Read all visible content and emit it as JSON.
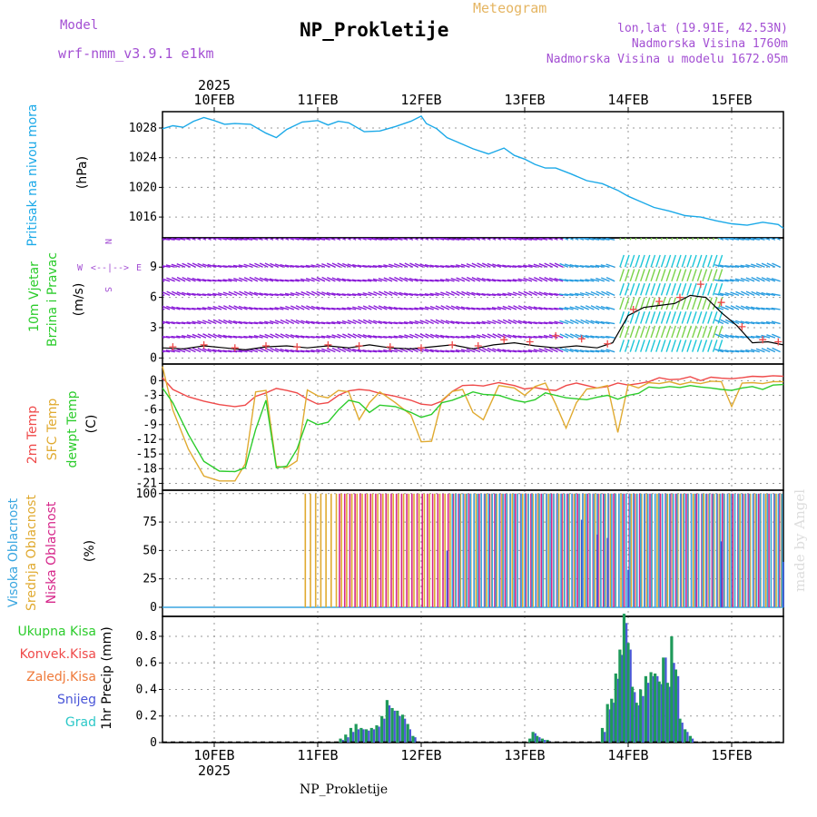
{
  "header": {
    "model_label": "Model",
    "model_name": "wrf-nmm_v3.9.1 e1km",
    "product": "Meteogram",
    "station": "NP_Prokletije",
    "lonlat": "lon,lat (19.91E, 42.53N)",
    "elevation": "Nadmorska Visina 1760m",
    "model_elevation": "Nadmorska Visina u modelu 1672.05m",
    "footer_station": "NP_Prokletije",
    "watermark": "made by Angel"
  },
  "colors": {
    "pressure": "#1ba9e8",
    "temp2m": "#ef4a4a",
    "tsfc": "#e0aa30",
    "dewpt": "#2ccc2c",
    "cloud_high": "#3aa6e0",
    "cloud_mid": "#e0aa30",
    "cloud_low": "#d6268a",
    "precip_total": "#1f9a5a",
    "precip_snow": "#4a56d8",
    "header_purple": "#a34fd3",
    "header_gold": "#e5b562",
    "wind_purple": "#8a1cd8"
  },
  "time_axis": {
    "year": "2025",
    "ticks": [
      "10FEB",
      "11FEB",
      "12FEB",
      "13FEB",
      "14FEB",
      "15FEB"
    ],
    "range_days": [
      9.5,
      15.5
    ]
  },
  "panels": {
    "pressure": {
      "ylabel": "Pritisak na nivou mora",
      "unit": "(hPa)"
    },
    "wind": {
      "ylabel1": "10m Vjetar",
      "ylabel2": "Brzina i Pravac",
      "unit": "(m/s)",
      "compass_n": "N",
      "compass_w": "W",
      "compass_e": "E",
      "compass_s": "S",
      "compass_arrows": "<--|-->"
    },
    "temperature": {
      "label_2m": "2m Temp",
      "label_sfc": "SFC Temp",
      "label_dew": "dewpt Temp",
      "unit": "(C)"
    },
    "cloud": {
      "label_high": "Visoka Oblacnost",
      "label_mid": "Srednja Oblacnost",
      "label_low": "Niska Oblacnost",
      "unit": "(%)"
    },
    "precip": {
      "label_total": "Ukupna Kisa",
      "label_conv": "Konvek.Kisa",
      "label_frz": "Zaledj.Kisa",
      "label_snow": "Snijeg",
      "label_hail": "Grad",
      "ylabel": "1hr Precip (mm)"
    }
  },
  "chart_data": [
    {
      "type": "line",
      "name": "pressure",
      "ylim": [
        1013.2,
        1030.2
      ],
      "yticks": [
        1016,
        1020,
        1024,
        1028
      ],
      "x": [
        9.5,
        9.6,
        9.7,
        9.8,
        9.9,
        10.0,
        10.1,
        10.2,
        10.35,
        10.5,
        10.6,
        10.7,
        10.85,
        11.0,
        11.1,
        11.2,
        11.3,
        11.45,
        11.6,
        11.75,
        11.9,
        12.0,
        12.05,
        12.15,
        12.25,
        12.35,
        12.5,
        12.65,
        12.8,
        12.9,
        13.0,
        13.1,
        13.2,
        13.3,
        13.45,
        13.6,
        13.75,
        13.9,
        14.0,
        14.1,
        14.25,
        14.4,
        14.55,
        14.7,
        14.85,
        15.0,
        15.15,
        15.3,
        15.45,
        15.5
      ],
      "values": [
        1027.9,
        1028.3,
        1028.1,
        1028.9,
        1029.4,
        1029.0,
        1028.5,
        1028.6,
        1028.5,
        1027.3,
        1026.7,
        1027.8,
        1028.8,
        1029.0,
        1028.4,
        1028.9,
        1028.7,
        1027.5,
        1027.6,
        1028.2,
        1028.9,
        1029.6,
        1028.6,
        1027.9,
        1026.7,
        1026.1,
        1025.2,
        1024.5,
        1025.3,
        1024.3,
        1023.8,
        1023.1,
        1022.6,
        1022.6,
        1021.8,
        1020.9,
        1020.5,
        1019.6,
        1018.8,
        1018.2,
        1017.3,
        1016.8,
        1016.2,
        1016.0,
        1015.5,
        1015.1,
        1014.9,
        1015.3,
        1015.0,
        1014.5
      ]
    },
    {
      "type": "line",
      "name": "wind",
      "ylim": [
        -0.6,
        11.9
      ],
      "yticks": [
        0,
        3,
        6,
        9
      ],
      "x": [
        9.5,
        9.7,
        9.9,
        10.1,
        10.3,
        10.5,
        10.7,
        10.9,
        11.1,
        11.3,
        11.5,
        11.7,
        11.9,
        12.1,
        12.3,
        12.5,
        12.7,
        12.9,
        13.1,
        13.3,
        13.5,
        13.7,
        13.85,
        14.0,
        14.15,
        14.3,
        14.45,
        14.6,
        14.75,
        14.9,
        15.05,
        15.2,
        15.35,
        15.5
      ],
      "values": [
        1.0,
        0.9,
        1.2,
        1.0,
        0.8,
        1.1,
        1.2,
        1.0,
        1.2,
        1.0,
        1.3,
        1.0,
        0.9,
        1.1,
        1.3,
        0.9,
        1.3,
        1.5,
        1.2,
        1.0,
        1.2,
        1.0,
        1.5,
        4.2,
        5.0,
        5.2,
        5.4,
        6.2,
        6.0,
        4.5,
        3.2,
        1.5,
        1.6,
        1.3
      ],
      "gust_x": [
        9.6,
        9.9,
        10.2,
        10.5,
        10.8,
        11.1,
        11.4,
        11.7,
        12.0,
        12.3,
        12.55,
        12.8,
        13.05,
        13.3,
        13.55,
        13.8,
        14.05,
        14.3,
        14.5,
        14.7,
        14.9,
        15.1,
        15.3,
        15.45
      ],
      "gust_values": [
        1.1,
        1.3,
        1.0,
        1.2,
        1.1,
        1.3,
        1.2,
        1.1,
        1.0,
        1.3,
        1.2,
        1.8,
        1.6,
        2.2,
        1.9,
        1.4,
        4.8,
        5.6,
        6.0,
        7.3,
        5.5,
        3.1,
        1.8,
        1.6
      ]
    },
    {
      "type": "line",
      "name": "temperature",
      "ylim": [
        -22.4,
        3.4
      ],
      "yticks": [
        -21,
        -18,
        -15,
        -12,
        -9,
        -6,
        -3,
        0
      ],
      "x": [
        9.5,
        9.6,
        9.75,
        9.9,
        10.05,
        10.2,
        10.3,
        10.4,
        10.5,
        10.6,
        10.7,
        10.8,
        10.9,
        11.0,
        11.1,
        11.2,
        11.3,
        11.4,
        11.5,
        11.6,
        11.75,
        11.9,
        12.0,
        12.1,
        12.2,
        12.3,
        12.4,
        12.5,
        12.6,
        12.75,
        12.9,
        13.0,
        13.1,
        13.2,
        13.3,
        13.4,
        13.5,
        13.6,
        13.7,
        13.8,
        13.9,
        14.0,
        14.1,
        14.2,
        14.3,
        14.4,
        14.5,
        14.6,
        14.7,
        14.8,
        14.9,
        15.0,
        15.1,
        15.2,
        15.3,
        15.4,
        15.5
      ],
      "series": [
        {
          "name": "2m Temp",
          "values": [
            0.6,
            -1.8,
            -3.3,
            -4.2,
            -4.9,
            -5.3,
            -5.0,
            -3.2,
            -2.5,
            -1.6,
            -2.0,
            -2.5,
            -3.8,
            -4.8,
            -4.5,
            -3.0,
            -2.1,
            -1.8,
            -2.0,
            -2.6,
            -3.2,
            -4.0,
            -4.8,
            -5.0,
            -4.2,
            -2.2,
            -1.0,
            -0.9,
            -1.1,
            -0.4,
            -1.0,
            -1.7,
            -1.4,
            -1.8,
            -2.0,
            -1.0,
            -0.5,
            -1.0,
            -1.5,
            -1.2,
            -0.5,
            -0.9,
            -0.6,
            -0.2,
            0.6,
            0.2,
            0.3,
            0.8,
            0.0,
            0.7,
            0.5,
            0.4,
            0.6,
            0.9,
            0.8,
            1.0,
            0.9
          ]
        },
        {
          "name": "SFC Temp",
          "values": [
            2.9,
            -6.0,
            -14.0,
            -19.5,
            -20.5,
            -20.5,
            -17.0,
            -2.3,
            -2.0,
            -17.5,
            -17.8,
            -16.4,
            -1.9,
            -3.1,
            -3.5,
            -2.0,
            -2.3,
            -8.0,
            -4.5,
            -2.3,
            -4.5,
            -7.0,
            -12.5,
            -12.4,
            -4.0,
            -2.2,
            -1.8,
            -6.5,
            -8.0,
            -1.0,
            -1.5,
            -3.0,
            -1.2,
            -0.5,
            -4.8,
            -9.7,
            -4.5,
            -1.7,
            -1.5,
            -1.0,
            -10.6,
            -0.8,
            -1.5,
            -0.4,
            -0.6,
            -0.2,
            -0.8,
            -0.3,
            -0.6,
            -0.1,
            -0.2,
            -5.3,
            -0.5,
            -0.4,
            -0.6,
            -0.2,
            -0.2
          ]
        },
        {
          "name": "dewpt Temp",
          "values": [
            -1.5,
            -4.5,
            -11.0,
            -16.5,
            -18.5,
            -18.6,
            -17.8,
            -10.0,
            -4.0,
            -17.8,
            -17.5,
            -14.0,
            -8.0,
            -9.0,
            -8.5,
            -6.0,
            -4.0,
            -4.5,
            -6.5,
            -5.0,
            -5.3,
            -6.5,
            -7.5,
            -6.9,
            -4.5,
            -4.0,
            -3.2,
            -2.3,
            -2.8,
            -3.0,
            -4.0,
            -4.4,
            -3.9,
            -2.5,
            -3.0,
            -3.5,
            -3.7,
            -3.9,
            -3.4,
            -3.0,
            -3.8,
            -3.0,
            -2.6,
            -1.3,
            -1.5,
            -1.2,
            -1.4,
            -1.0,
            -1.3,
            -1.5,
            -1.8,
            -2.0,
            -1.5,
            -1.2,
            -1.8,
            -0.9,
            -0.8
          ]
        }
      ]
    },
    {
      "type": "bar",
      "name": "cloud",
      "ylim": [
        -8,
        103
      ],
      "yticks": [
        0,
        25,
        50,
        75,
        100
      ],
      "coverage": [
        {
          "layer": "high",
          "from": 12.28,
          "to": 15.5,
          "value": 100
        },
        {
          "layer": "mid",
          "from": 10.88,
          "to": 15.5,
          "value": 100
        },
        {
          "layer": "low",
          "from": 11.2,
          "to": 15.5,
          "value": 100
        }
      ],
      "partial_values": [
        {
          "x": 12.25,
          "value": 50
        },
        {
          "x": 13.55,
          "value": 77
        },
        {
          "x": 13.7,
          "value": 64
        },
        {
          "x": 13.8,
          "value": 61
        },
        {
          "x": 14.0,
          "value": 33
        },
        {
          "x": 14.9,
          "value": 58
        },
        {
          "x": 15.5,
          "value": 40
        }
      ]
    },
    {
      "type": "bar",
      "name": "precip",
      "ylim": [
        0,
        0.95
      ],
      "yticks": [
        0,
        0.2,
        0.4,
        0.6,
        0.8
      ],
      "x": [
        11.22,
        11.27,
        11.32,
        11.37,
        11.42,
        11.47,
        11.52,
        11.57,
        11.62,
        11.67,
        11.72,
        11.77,
        11.82,
        11.87,
        11.92,
        13.05,
        13.08,
        13.12,
        13.17,
        13.22,
        13.75,
        13.8,
        13.84,
        13.88,
        13.92,
        13.96,
        14.0,
        14.04,
        14.08,
        14.12,
        14.17,
        14.22,
        14.26,
        14.3,
        14.34,
        14.38,
        14.42,
        14.46,
        14.5,
        14.55,
        14.6
      ],
      "values": [
        0.03,
        0.06,
        0.11,
        0.14,
        0.11,
        0.1,
        0.11,
        0.13,
        0.2,
        0.32,
        0.26,
        0.24,
        0.21,
        0.14,
        0.05,
        0.03,
        0.08,
        0.05,
        0.03,
        0.02,
        0.11,
        0.29,
        0.33,
        0.52,
        0.7,
        0.97,
        0.75,
        0.42,
        0.3,
        0.4,
        0.5,
        0.53,
        0.52,
        0.46,
        0.64,
        0.45,
        0.8,
        0.55,
        0.18,
        0.1,
        0.05
      ],
      "snow_values": [
        0.02,
        0.04,
        0.08,
        0.1,
        0.1,
        0.09,
        0.1,
        0.12,
        0.18,
        0.28,
        0.24,
        0.2,
        0.18,
        0.1,
        0.04,
        0.02,
        0.07,
        0.04,
        0.02,
        0.01,
        0.08,
        0.25,
        0.3,
        0.48,
        0.66,
        0.9,
        0.7,
        0.38,
        0.28,
        0.35,
        0.45,
        0.5,
        0.5,
        0.44,
        0.64,
        0.42,
        0.6,
        0.5,
        0.15,
        0.08,
        0.03
      ]
    }
  ]
}
